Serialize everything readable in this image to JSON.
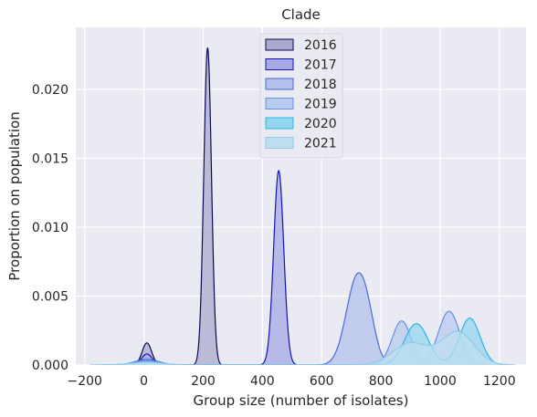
{
  "chart_data": {
    "type": "area",
    "title": "Clade",
    "xlabel": "Group size (number of isolates)",
    "ylabel": "Proportion on population",
    "xlim": [
      -230,
      1290
    ],
    "ylim": [
      0,
      0.0245
    ],
    "xticks": [
      -200,
      0,
      200,
      400,
      600,
      800,
      1000,
      1200
    ],
    "xtick_labels": [
      "−200",
      "0",
      "200",
      "400",
      "600",
      "800",
      "1000",
      "1200"
    ],
    "yticks": [
      0.0,
      0.005,
      0.01,
      0.015,
      0.02
    ],
    "ytick_labels": [
      "0.000",
      "0.005",
      "0.010",
      "0.015",
      "0.020"
    ],
    "grid": true,
    "legend_position": "top-center",
    "series": [
      {
        "name": "2016",
        "fill": "#a9aacd",
        "stroke": "#0b0b55",
        "peaks": [
          {
            "x": 10,
            "y": 0.0016,
            "sigma": 16
          },
          {
            "x": 215,
            "y": 0.023,
            "sigma": 13
          }
        ]
      },
      {
        "name": "2017",
        "fill": "#a6a9e6",
        "stroke": "#1414b4",
        "peaks": [
          {
            "x": 10,
            "y": 0.0008,
            "sigma": 18
          },
          {
            "x": 455,
            "y": 0.0141,
            "sigma": 17
          }
        ]
      },
      {
        "name": "2018",
        "fill": "#b3c0ec",
        "stroke": "#4a6ad6",
        "peaks": [
          {
            "x": 10,
            "y": 0.0004,
            "sigma": 40
          },
          {
            "x": 720,
            "y": 0.0063,
            "sigma": 37
          },
          {
            "x": 760,
            "y": 0.0012,
            "sigma": 25
          }
        ]
      },
      {
        "name": "2019",
        "fill": "#b8cbef",
        "stroke": "#6690e3",
        "peaks": [
          {
            "x": 10,
            "y": 0.0003,
            "sigma": 45
          },
          {
            "x": 870,
            "y": 0.0032,
            "sigma": 32
          },
          {
            "x": 1030,
            "y": 0.0039,
            "sigma": 36
          }
        ]
      },
      {
        "name": "2020",
        "fill": "#95d6ef",
        "stroke": "#2bb5e6",
        "peaks": [
          {
            "x": 10,
            "y": 0.0002,
            "sigma": 50
          },
          {
            "x": 920,
            "y": 0.003,
            "sigma": 40
          },
          {
            "x": 1100,
            "y": 0.0034,
            "sigma": 35
          }
        ]
      },
      {
        "name": "2021",
        "fill": "#bfdff0",
        "stroke": "#8fcbea",
        "peaks": [
          {
            "x": 10,
            "y": 0.0002,
            "sigma": 55
          },
          {
            "x": 900,
            "y": 0.0016,
            "sigma": 60
          },
          {
            "x": 1060,
            "y": 0.0024,
            "sigma": 55
          }
        ]
      }
    ]
  }
}
